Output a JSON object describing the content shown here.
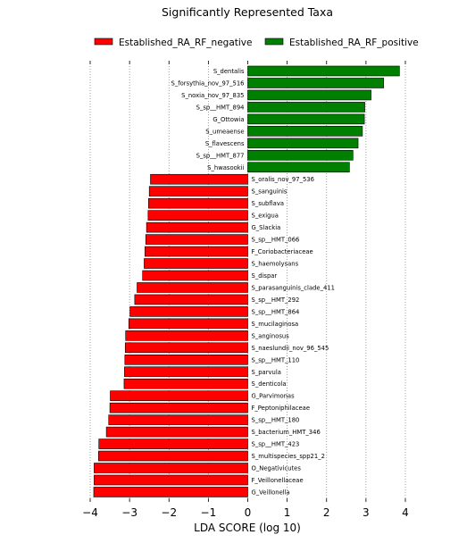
{
  "chart_data": {
    "type": "bar",
    "orientation": "horizontal",
    "title": "Significantly Represented Taxa",
    "xlabel": "LDA SCORE (log 10)",
    "ylabel": "",
    "xlim": [
      -4,
      4
    ],
    "xticks": [
      -4,
      -3,
      -2,
      -1,
      0,
      1,
      2,
      3,
      4
    ],
    "grid": "vertical dotted",
    "legend_position": "top",
    "series": [
      {
        "name": "Established_RA_RF_negative",
        "color": "#ff0000"
      },
      {
        "name": "Established_RA_RF_positive",
        "color": "#008000"
      }
    ],
    "bars": [
      {
        "label": "S_dentalis",
        "value": 3.85,
        "group": 1
      },
      {
        "label": "S_forsythia_nov_97_516",
        "value": 3.45,
        "group": 1
      },
      {
        "label": "S_noxia_nov_97_835",
        "value": 3.13,
        "group": 1
      },
      {
        "label": "S_sp__HMT_894",
        "value": 2.97,
        "group": 1
      },
      {
        "label": "G_Ottowia",
        "value": 2.96,
        "group": 1
      },
      {
        "label": "S_umeaense",
        "value": 2.91,
        "group": 1
      },
      {
        "label": "S_flavescens",
        "value": 2.8,
        "group": 1
      },
      {
        "label": "S_sp__HMT_877",
        "value": 2.67,
        "group": 1
      },
      {
        "label": "S_hwasookii",
        "value": 2.58,
        "group": 1
      },
      {
        "label": "S_oralis_nov_97_536",
        "value": -2.47,
        "group": 0
      },
      {
        "label": "S_sanguinis",
        "value": -2.5,
        "group": 0
      },
      {
        "label": "S_subflava",
        "value": -2.52,
        "group": 0
      },
      {
        "label": "S_exigua",
        "value": -2.53,
        "group": 0
      },
      {
        "label": "G_Slackia",
        "value": -2.57,
        "group": 0
      },
      {
        "label": "S_sp__HMT_066",
        "value": -2.59,
        "group": 0
      },
      {
        "label": "F_Coriobacteriaceae",
        "value": -2.61,
        "group": 0
      },
      {
        "label": "S_haemolysans",
        "value": -2.63,
        "group": 0
      },
      {
        "label": "S_dispar",
        "value": -2.67,
        "group": 0
      },
      {
        "label": "S_parasanguinis_clade_411",
        "value": -2.81,
        "group": 0
      },
      {
        "label": "S_sp__HMT_292",
        "value": -2.87,
        "group": 0
      },
      {
        "label": "S_sp__HMT_864",
        "value": -2.99,
        "group": 0
      },
      {
        "label": "S_mucilaginosa",
        "value": -3.02,
        "group": 0
      },
      {
        "label": "S_anginosus",
        "value": -3.1,
        "group": 0
      },
      {
        "label": "S_naeslundii_nov_96_545",
        "value": -3.11,
        "group": 0
      },
      {
        "label": "S_sp__HMT_110",
        "value": -3.12,
        "group": 0
      },
      {
        "label": "S_parvula",
        "value": -3.13,
        "group": 0
      },
      {
        "label": "S_denticola",
        "value": -3.14,
        "group": 0
      },
      {
        "label": "G_Parvimonas",
        "value": -3.49,
        "group": 0
      },
      {
        "label": "F_Peptoniphilaceae",
        "value": -3.5,
        "group": 0
      },
      {
        "label": "S_sp__HMT_180",
        "value": -3.53,
        "group": 0
      },
      {
        "label": "S_bacterium_HMT_346",
        "value": -3.59,
        "group": 0
      },
      {
        "label": "S_sp__HMT_423",
        "value": -3.78,
        "group": 0
      },
      {
        "label": "S_multispecies_spp21_2",
        "value": -3.79,
        "group": 0
      },
      {
        "label": "O_Negativicutes",
        "value": -3.9,
        "group": 0
      },
      {
        "label": "F_Veillonellaceae",
        "value": -3.9,
        "group": 0
      },
      {
        "label": "G_Veillonella",
        "value": -3.91,
        "group": 0
      }
    ]
  }
}
